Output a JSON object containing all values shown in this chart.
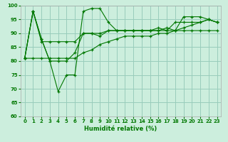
{
  "xlabel": "Humidité relative (%)",
  "xlim": [
    -0.5,
    23.5
  ],
  "ylim": [
    60,
    100
  ],
  "yticks": [
    60,
    65,
    70,
    75,
    80,
    85,
    90,
    95,
    100
  ],
  "xticks": [
    0,
    1,
    2,
    3,
    4,
    5,
    6,
    7,
    8,
    9,
    10,
    11,
    12,
    13,
    14,
    15,
    16,
    17,
    18,
    19,
    20,
    21,
    22,
    23
  ],
  "bg_color": "#cceedd",
  "line_color": "#007700",
  "grid_color": "#99ccbb",
  "series": [
    [
      81,
      98,
      88,
      80,
      69,
      75,
      75,
      98,
      99,
      99,
      94,
      91,
      91,
      91,
      91,
      91,
      91,
      92,
      91,
      96,
      96,
      96,
      95,
      94
    ],
    [
      81,
      98,
      88,
      80,
      80,
      80,
      83,
      90,
      90,
      89,
      91,
      91,
      91,
      91,
      91,
      91,
      91,
      91,
      91,
      91,
      91,
      91,
      91,
      91
    ],
    [
      81,
      98,
      87,
      87,
      87,
      87,
      87,
      90,
      90,
      90,
      91,
      91,
      91,
      91,
      91,
      91,
      92,
      91,
      94,
      94,
      94,
      94,
      95,
      94
    ],
    [
      81,
      81,
      81,
      81,
      81,
      81,
      81,
      83,
      84,
      86,
      87,
      88,
      89,
      89,
      89,
      89,
      90,
      90,
      91,
      92,
      93,
      94,
      95,
      94
    ]
  ]
}
